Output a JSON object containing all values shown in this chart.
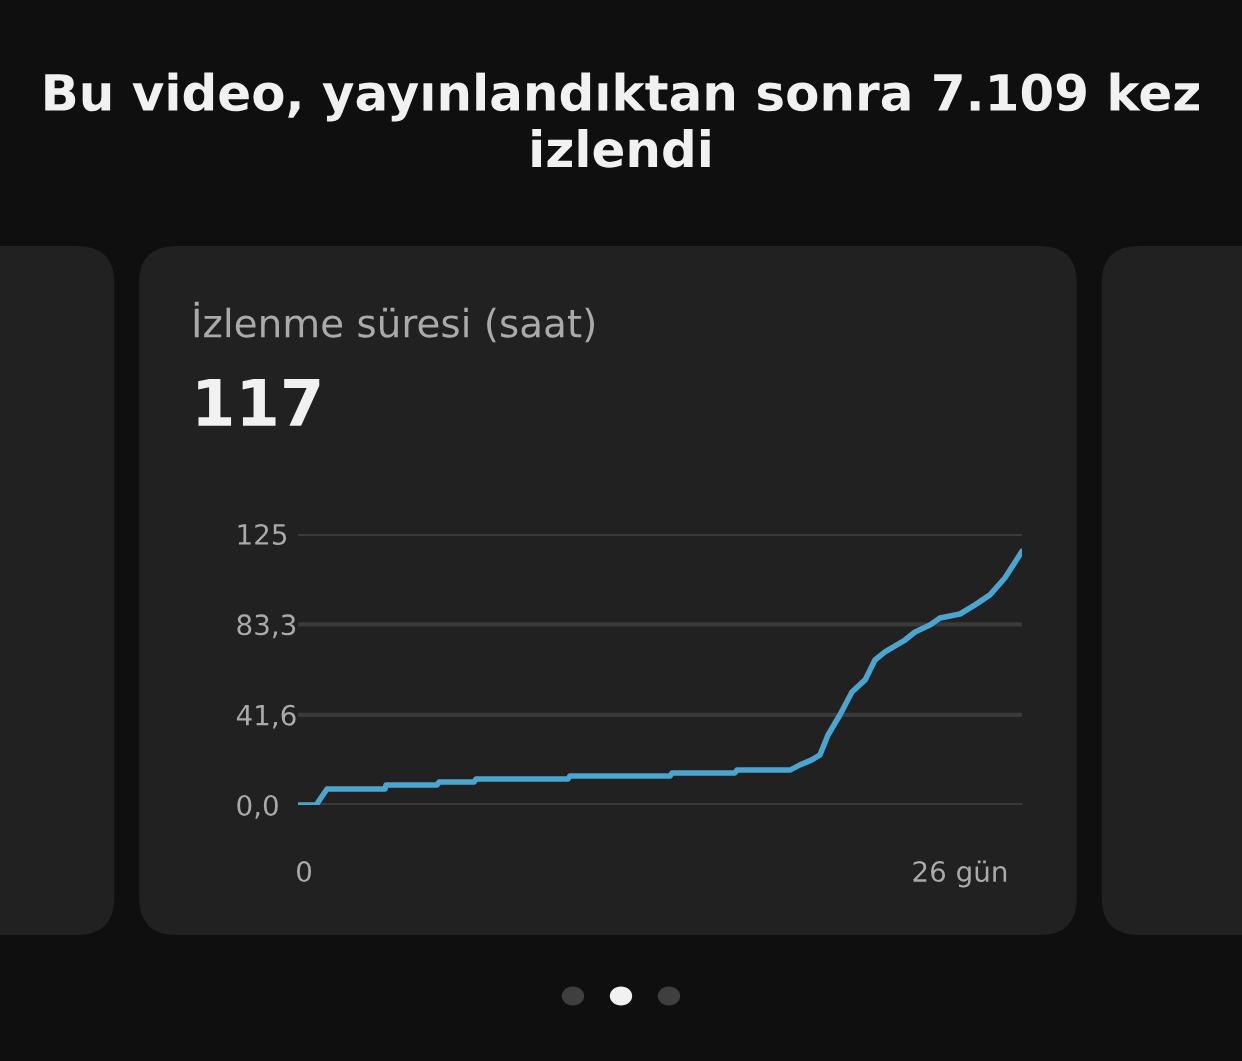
{
  "chart_data": {
    "type": "line",
    "title": "Bu video, yayınlandıktan sonra 7.109 kez izlendi",
    "subtitle": "İzlenme süresi (saat)",
    "annotations": [
      "117"
    ],
    "x": [
      -0.24,
      0.48,
      0.91,
      3.21,
      3.25,
      5.27,
      5.35,
      6.74,
      6.82,
      10.46,
      10.54,
      14.51,
      14.59,
      17.08,
      17.16,
      19.26,
      19.66,
      20.13,
      20.45,
      20.77,
      21.24,
      21.72,
      22.24,
      22.63,
      23.03,
      23.82,
      24.22,
      24.81,
      25.21,
      26.0,
      26.6,
      27.19,
      27.78,
      28.46
    ],
    "series": [
      {
        "color": "#4aa6d0",
        "values": [
          0,
          0,
          7.4,
          7.4,
          9.2,
          9.2,
          10.6,
          10.6,
          12.0,
          12.0,
          13.4,
          13.4,
          14.8,
          14.8,
          16.1,
          16.1,
          18.5,
          20.8,
          23.1,
          32.3,
          41.5,
          52.1,
          57.7,
          66.9,
          70.6,
          76.1,
          79.8,
          83.0,
          86.3,
          88.1,
          92.3,
          96.9,
          104.7,
          117
        ]
      }
    ],
    "xlim": [
      -0.24,
      28.46
    ],
    "xticks": [
      0,
      {
        "value": 26,
        "label": "26 gün"
      }
    ],
    "ylim": [
      0,
      125
    ],
    "yticks": [
      {
        "value": 0,
        "label": "0,0"
      },
      {
        "value": 41.6,
        "label": "41,6"
      },
      {
        "value": 83.3,
        "label": "83,3"
      },
      {
        "value": 125,
        "label": "125"
      }
    ],
    "grid": "y",
    "marker": "none",
    "line_style": "solid"
  }
}
